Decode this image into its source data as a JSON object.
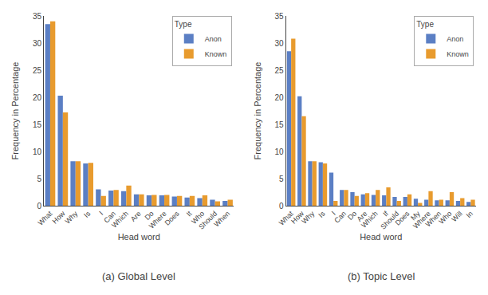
{
  "chart_data": [
    {
      "type": "bar",
      "title": "(a) Global Level",
      "xlabel": "Head word",
      "ylabel": "Frequency in Percentage",
      "categories": [
        "What",
        "How",
        "Why",
        "Is",
        "I",
        "Can",
        "Which",
        "Are",
        "Do",
        "Where",
        "Does",
        "It",
        "Who",
        "Should",
        "When"
      ],
      "series": [
        {
          "name": "Anon",
          "color": "#5B7FC4",
          "values": [
            33.5,
            20.3,
            8.2,
            7.8,
            3.0,
            2.8,
            2.7,
            2.1,
            1.9,
            1.9,
            1.7,
            1.5,
            1.4,
            1.1,
            0.9
          ]
        },
        {
          "name": "Known",
          "color": "#E89B2E",
          "values": [
            34.0,
            17.2,
            8.2,
            7.9,
            1.8,
            2.9,
            3.7,
            2.1,
            2.0,
            2.0,
            1.8,
            1.8,
            1.9,
            0.8,
            1.1
          ]
        }
      ],
      "ylim": [
        0,
        35
      ],
      "yticks": [
        0,
        5,
        10,
        15,
        20,
        25,
        30,
        35
      ],
      "grid": false,
      "legend": "upper right",
      "legend_title": "Type"
    },
    {
      "type": "bar",
      "title": "(b) Topic Level",
      "xlabel": "Head word",
      "ylabel": "Frequency in Percentage",
      "categories": [
        "What",
        "How",
        "Why",
        "Is",
        "I",
        "Can",
        "Do",
        "Are",
        "Which",
        "If",
        "Should",
        "Does",
        "My",
        "Where",
        "When",
        "Who",
        "Will",
        "In"
      ],
      "series": [
        {
          "name": "Anon",
          "color": "#5B7FC4",
          "values": [
            28.5,
            20.2,
            8.2,
            8.0,
            6.1,
            2.9,
            2.5,
            2.1,
            2.0,
            1.9,
            1.6,
            1.6,
            1.3,
            1.1,
            1.0,
            1.0,
            0.9,
            0.7
          ]
        },
        {
          "name": "Known",
          "color": "#E89B2E",
          "values": [
            30.8,
            16.5,
            8.2,
            7.8,
            0.9,
            2.9,
            1.8,
            2.3,
            2.9,
            3.4,
            0.9,
            2.1,
            0.5,
            2.7,
            1.1,
            2.5,
            1.4,
            1.1
          ]
        }
      ],
      "ylim": [
        0,
        35
      ],
      "yticks": [
        0,
        5,
        10,
        15,
        20,
        25,
        30,
        35
      ],
      "grid": false,
      "legend": "upper right",
      "legend_title": "Type"
    }
  ]
}
